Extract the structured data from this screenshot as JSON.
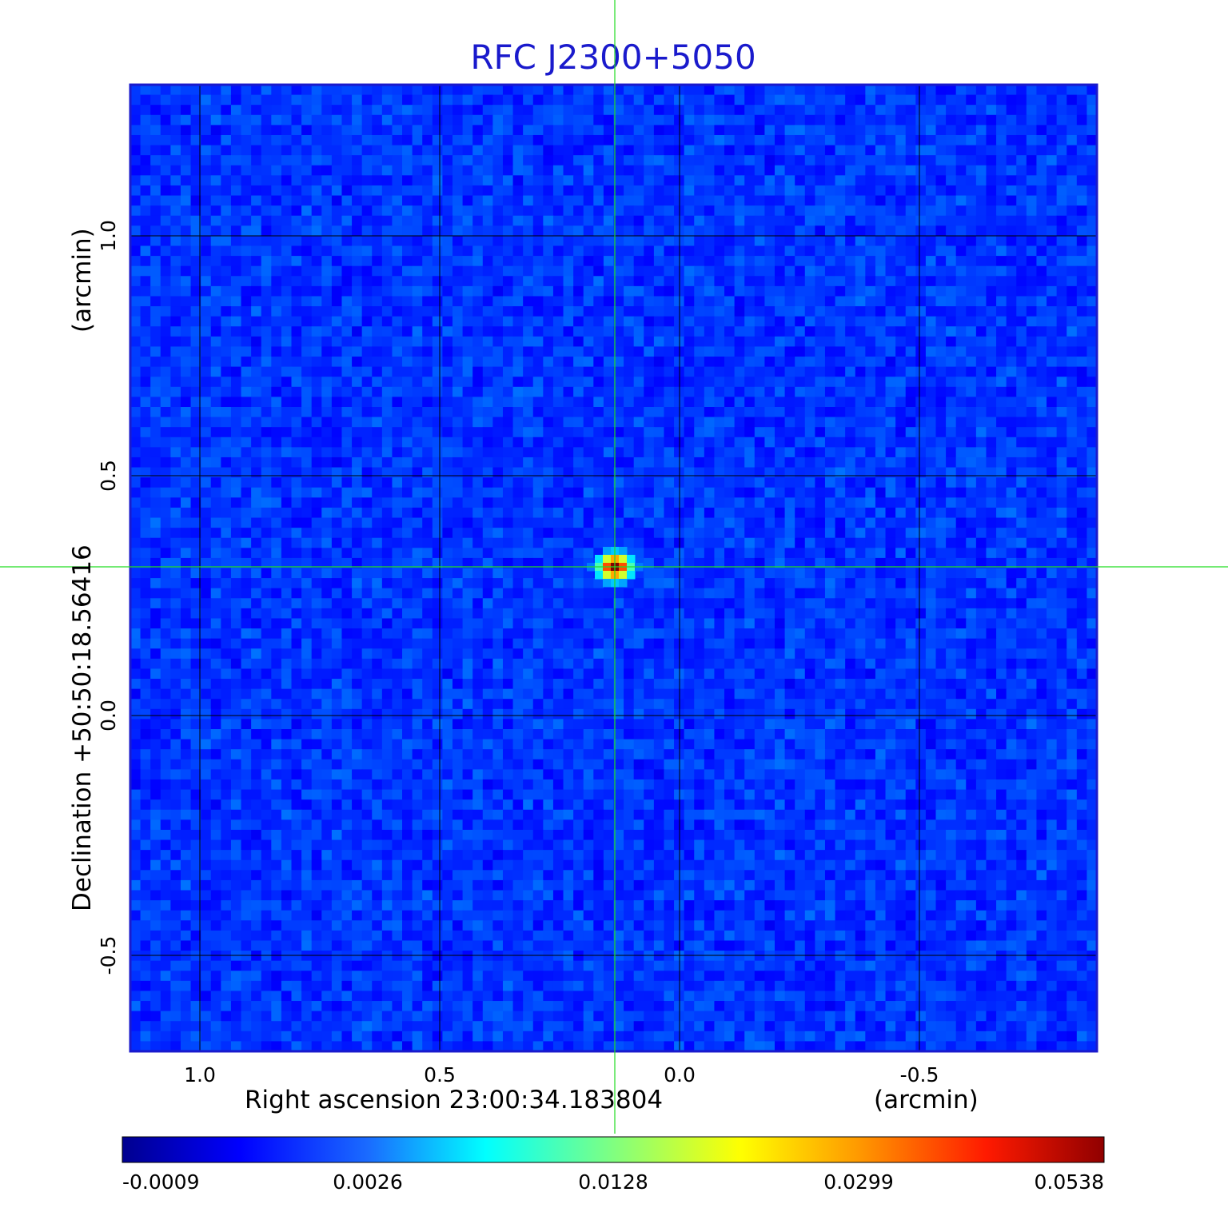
{
  "chart_data": {
    "type": "heatmap",
    "title": "RFC J2300+5050",
    "xlabel": "Right ascension  23:00:34.183804",
    "xunit": "(arcmin)",
    "ylabel": "Declination  +50:50:18.56416",
    "yunit": "(arcmin)",
    "x_ticks": [
      "1.0",
      "0.5",
      "0.0",
      "-0.5"
    ],
    "x_tick_values": [
      1.0,
      0.5,
      0.0,
      -0.5
    ],
    "y_ticks": [
      "1.0",
      "0.5",
      "0.0",
      "-0.5"
    ],
    "y_tick_values": [
      1.0,
      0.5,
      0.0,
      -0.5
    ],
    "xlim": [
      1.145,
      -0.87
    ],
    "ylim": [
      -0.7,
      1.315
    ],
    "grid": true,
    "colormap": "jet",
    "colorbar": {
      "position": "bottom",
      "ticks": [
        "-0.0009",
        "0.0026",
        "0.0128",
        "0.0299",
        "0.0538"
      ],
      "values": [
        -0.0009,
        0.0026,
        0.0128,
        0.0299,
        0.0538
      ]
    },
    "peak": {
      "ra_offset_arcmin": 0.135,
      "dec_offset_arcmin": 0.31,
      "value": 0.0538
    },
    "crosshair": {
      "ra_offset_arcmin": 0.135,
      "dec_offset_arcmin": 0.31,
      "color": "#22dd22"
    },
    "frame_color": "#1a1acc"
  }
}
